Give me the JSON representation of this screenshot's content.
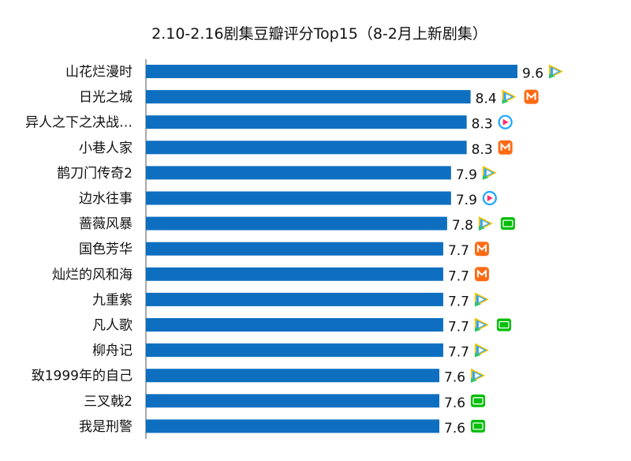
{
  "chart_data": {
    "type": "bar",
    "orientation": "horizontal",
    "title": "2.10-2.16剧集豆瓣评分Top15（8-2月上新剧集）",
    "xlabel": "",
    "ylabel": "",
    "categories": [
      "山花烂漫时",
      "日光之城",
      "异人之下之决战…",
      "小巷人家",
      "鹊刀门传奇2",
      "边水往事",
      "蔷薇风暴",
      "国色芳华",
      "灿烂的风和海",
      "九重紫",
      "凡人歌",
      "柳舟记",
      "致1999年的自己",
      "三叉戟2",
      "我是刑警"
    ],
    "values": [
      9.6,
      8.4,
      8.3,
      8.3,
      7.9,
      7.9,
      7.8,
      7.7,
      7.7,
      7.7,
      7.7,
      7.7,
      7.6,
      7.6,
      7.6
    ],
    "value_labels": [
      "9.6",
      "8.4",
      "8.3",
      "8.3",
      "7.9",
      "7.9",
      "7.8",
      "7.7",
      "7.7",
      "7.7",
      "7.7",
      "7.7",
      "7.6",
      "7.6",
      "7.6"
    ],
    "platforms": [
      [
        "tencent-video-icon"
      ],
      [
        "tencent-video-icon",
        "mango-tv-icon"
      ],
      [
        "youku-icon"
      ],
      [
        "mango-tv-icon"
      ],
      [
        "tencent-video-icon"
      ],
      [
        "youku-icon"
      ],
      [
        "tencent-video-icon",
        "iqiyi-icon"
      ],
      [
        "mango-tv-icon"
      ],
      [
        "mango-tv-icon"
      ],
      [
        "tencent-video-icon"
      ],
      [
        "tencent-video-icon",
        "iqiyi-icon"
      ],
      [
        "tencent-video-icon"
      ],
      [
        "tencent-video-icon"
      ],
      [
        "iqiyi-icon"
      ],
      [
        "iqiyi-icon"
      ]
    ],
    "bar_color": "#0e6fc0",
    "grid": false,
    "legend": "none"
  },
  "icon_colors": {
    "tencent-video-icon": [
      "#f5c400",
      "#2fa6ff",
      "#30c26a"
    ],
    "mango-tv-icon": "#ff6a13",
    "iqiyi-icon": "#00be06",
    "youku-icon": [
      "#1aa7ff",
      "#ff2e68"
    ]
  }
}
